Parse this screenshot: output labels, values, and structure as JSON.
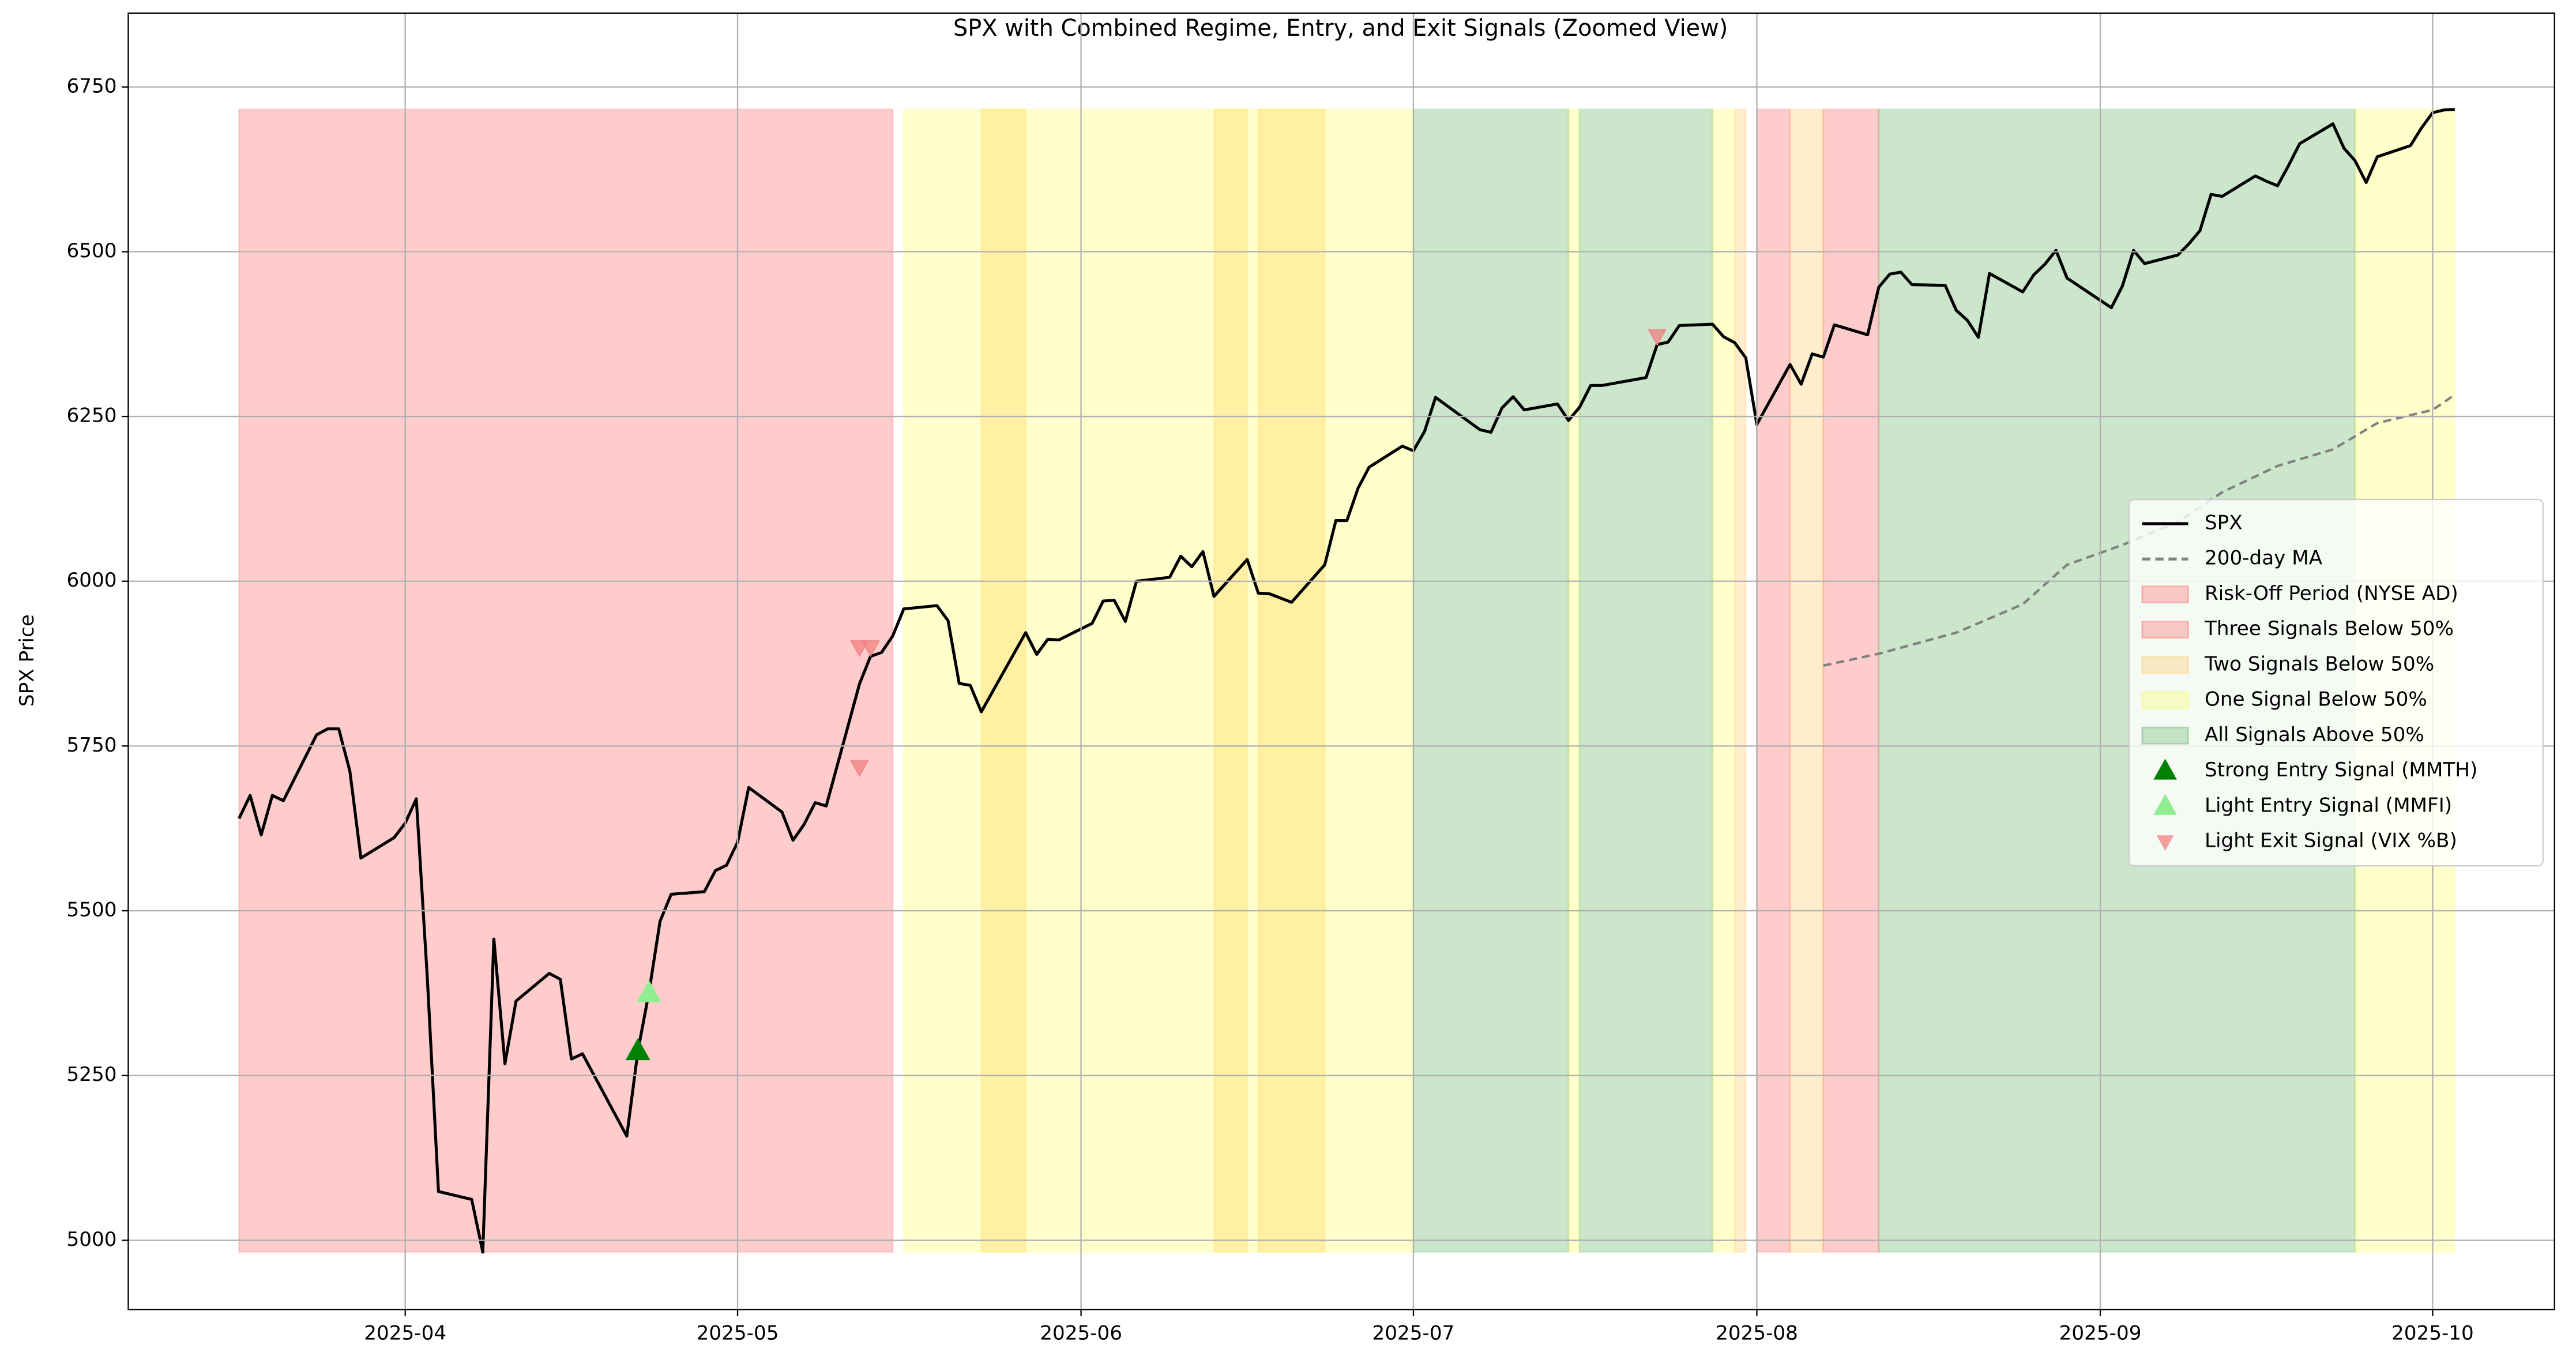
{
  "chart_data": {
    "type": "line",
    "title": "SPX with Combined Regime, Entry, and Exit Signals (Zoomed View)",
    "ylabel": "SPX Price",
    "xlim": [
      "2025-03-07",
      "2025-10-12"
    ],
    "ylim": [
      4895,
      6862
    ],
    "xticks": [
      {
        "value": "2025-04-01",
        "label": "2025-04"
      },
      {
        "value": "2025-05-01",
        "label": "2025-05"
      },
      {
        "value": "2025-06-01",
        "label": "2025-06"
      },
      {
        "value": "2025-07-01",
        "label": "2025-07"
      },
      {
        "value": "2025-08-01",
        "label": "2025-08"
      },
      {
        "value": "2025-09-01",
        "label": "2025-09"
      },
      {
        "value": "2025-10-01",
        "label": "2025-10"
      }
    ],
    "yticks": [
      5000,
      5250,
      5500,
      5750,
      6000,
      6250,
      6500,
      6750
    ],
    "grid": true,
    "legend": "center right",
    "span_range": [
      4982,
      6716
    ],
    "series": [
      {
        "name": "SPX",
        "color": "#000000",
        "dash": false,
        "x": [
          "2025-03-17",
          "2025-03-18",
          "2025-03-19",
          "2025-03-20",
          "2025-03-21",
          "2025-03-24",
          "2025-03-25",
          "2025-03-26",
          "2025-03-27",
          "2025-03-28",
          "2025-03-31",
          "2025-04-01",
          "2025-04-02",
          "2025-04-03",
          "2025-04-04",
          "2025-04-07",
          "2025-04-08",
          "2025-04-09",
          "2025-04-10",
          "2025-04-11",
          "2025-04-14",
          "2025-04-15",
          "2025-04-16",
          "2025-04-17",
          "2025-04-21",
          "2025-04-22",
          "2025-04-23",
          "2025-04-24",
          "2025-04-25",
          "2025-04-28",
          "2025-04-29",
          "2025-04-30",
          "2025-05-01",
          "2025-05-02",
          "2025-05-05",
          "2025-05-06",
          "2025-05-07",
          "2025-05-08",
          "2025-05-09",
          "2025-05-12",
          "2025-05-13",
          "2025-05-14",
          "2025-05-15",
          "2025-05-16",
          "2025-05-19",
          "2025-05-20",
          "2025-05-21",
          "2025-05-22",
          "2025-05-23",
          "2025-05-27",
          "2025-05-28",
          "2025-05-29",
          "2025-05-30",
          "2025-06-02",
          "2025-06-03",
          "2025-06-04",
          "2025-06-05",
          "2025-06-06",
          "2025-06-09",
          "2025-06-10",
          "2025-06-11",
          "2025-06-12",
          "2025-06-13",
          "2025-06-16",
          "2025-06-17",
          "2025-06-18",
          "2025-06-20",
          "2025-06-23",
          "2025-06-24",
          "2025-06-25",
          "2025-06-26",
          "2025-06-27",
          "2025-06-30",
          "2025-07-01",
          "2025-07-02",
          "2025-07-03",
          "2025-07-07",
          "2025-07-08",
          "2025-07-09",
          "2025-07-10",
          "2025-07-11",
          "2025-07-14",
          "2025-07-15",
          "2025-07-16",
          "2025-07-17",
          "2025-07-18",
          "2025-07-21",
          "2025-07-22",
          "2025-07-23",
          "2025-07-24",
          "2025-07-25",
          "2025-07-28",
          "2025-07-29",
          "2025-07-30",
          "2025-07-31",
          "2025-08-01",
          "2025-08-04",
          "2025-08-05",
          "2025-08-06",
          "2025-08-07",
          "2025-08-08",
          "2025-08-11",
          "2025-08-12",
          "2025-08-13",
          "2025-08-14",
          "2025-08-15",
          "2025-08-18",
          "2025-08-19",
          "2025-08-20",
          "2025-08-21",
          "2025-08-22",
          "2025-08-25",
          "2025-08-26",
          "2025-08-27",
          "2025-08-28",
          "2025-08-29",
          "2025-09-02",
          "2025-09-03",
          "2025-09-04",
          "2025-09-05",
          "2025-09-08",
          "2025-09-09",
          "2025-09-10",
          "2025-09-11",
          "2025-09-12",
          "2025-09-15",
          "2025-09-16",
          "2025-09-17",
          "2025-09-18",
          "2025-09-19",
          "2025-09-22",
          "2025-09-23",
          "2025-09-24",
          "2025-09-25",
          "2025-09-26",
          "2025-09-29",
          "2025-09-30",
          "2025-10-01",
          "2025-10-02",
          "2025-10-03"
        ],
        "values": [
          5640,
          5675,
          5615,
          5675,
          5667,
          5767,
          5776,
          5776,
          5712,
          5580,
          5611,
          5633,
          5670,
          5396,
          5074,
          5062,
          4982,
          5457,
          5268,
          5363,
          5405,
          5396,
          5275,
          5283,
          5158,
          5287,
          5376,
          5484,
          5525,
          5529,
          5561,
          5569,
          5604,
          5687,
          5650,
          5607,
          5631,
          5664,
          5659,
          5844,
          5886,
          5892,
          5917,
          5958,
          5963,
          5940,
          5845,
          5842,
          5802,
          5922,
          5889,
          5912,
          5911,
          5936,
          5970,
          5971,
          5939,
          6000,
          6006,
          6038,
          6022,
          6045,
          5977,
          6033,
          5982,
          5981,
          5968,
          6025,
          6092,
          6092,
          6141,
          6173,
          6205,
          6198,
          6227,
          6279,
          6230,
          6226,
          6263,
          6280,
          6260,
          6269,
          6244,
          6264,
          6297,
          6297,
          6306,
          6309,
          6359,
          6363,
          6388,
          6390,
          6371,
          6362,
          6339,
          6238,
          6329,
          6299,
          6345,
          6340,
          6389,
          6374,
          6446,
          6466,
          6469,
          6450,
          6449,
          6411,
          6396,
          6370,
          6467,
          6439,
          6465,
          6481,
          6502,
          6460,
          6415,
          6448,
          6502,
          6482,
          6495,
          6512,
          6532,
          6587,
          6584,
          6615,
          6607,
          6600,
          6631,
          6664,
          6694,
          6657,
          6638,
          6605,
          6644,
          6661,
          6688,
          6711,
          6715,
          6716
        ]
      },
      {
        "name": "200-day MA",
        "color": "#808080",
        "dash": true,
        "x": [
          "2025-08-07",
          "2025-08-12",
          "2025-08-19",
          "2025-08-25",
          "2025-08-29",
          "2025-09-03",
          "2025-09-08",
          "2025-09-12",
          "2025-09-17",
          "2025-09-22",
          "2025-09-26",
          "2025-10-01",
          "2025-10-03"
        ],
        "values": [
          5872,
          5890,
          5922,
          5965,
          6025,
          6055,
          6090,
          6135,
          6175,
          6200,
          6240,
          6260,
          6283
        ]
      }
    ],
    "regions": [
      {
        "name": "Risk-Off Period (NYSE AD)",
        "color": "#ff0000",
        "spans": [
          [
            "2025-03-17",
            "2025-05-15"
          ]
        ]
      },
      {
        "name": "Three Signals Below 50%",
        "color": "#ff0000",
        "spans": [
          [
            "2025-08-01",
            "2025-08-04"
          ],
          [
            "2025-08-07",
            "2025-08-12"
          ]
        ]
      },
      {
        "name": "Two Signals Below 50%",
        "color": "#ffa500",
        "spans": [
          [
            "2025-05-23",
            "2025-05-27"
          ],
          [
            "2025-06-13",
            "2025-06-16"
          ],
          [
            "2025-06-17",
            "2025-06-23"
          ],
          [
            "2025-07-30",
            "2025-07-31"
          ],
          [
            "2025-08-04",
            "2025-08-07"
          ]
        ]
      },
      {
        "name": "One Signal Below 50%",
        "color": "#ffff00",
        "spans": [
          [
            "2025-05-16",
            "2025-07-01"
          ],
          [
            "2025-07-15",
            "2025-07-16"
          ],
          [
            "2025-07-28",
            "2025-07-30"
          ],
          [
            "2025-09-24",
            "2025-10-03"
          ]
        ]
      },
      {
        "name": "All Signals Above 50%",
        "color": "#008000",
        "spans": [
          [
            "2025-07-01",
            "2025-07-15"
          ],
          [
            "2025-07-16",
            "2025-07-28"
          ],
          [
            "2025-08-12",
            "2025-09-24"
          ]
        ]
      }
    ],
    "signals": [
      {
        "name": "Strong Entry Signal (MMTH)",
        "color": "#008000",
        "marker": "up",
        "x": [
          "2025-04-22"
        ],
        "values": [
          5287
        ]
      },
      {
        "name": "Light Entry Signal (MMFI)",
        "color": "#90ee90",
        "marker": "up",
        "x": [
          "2025-04-23"
        ],
        "values": [
          5375
        ]
      },
      {
        "name": "Light Exit Signal (VIX %B)",
        "color": "#f08080",
        "marker": "down",
        "x": [
          "2025-05-12",
          "2025-05-12",
          "2025-05-13",
          "2025-07-23"
        ],
        "values": [
          5718,
          5900,
          5900,
          6372
        ]
      }
    ]
  }
}
